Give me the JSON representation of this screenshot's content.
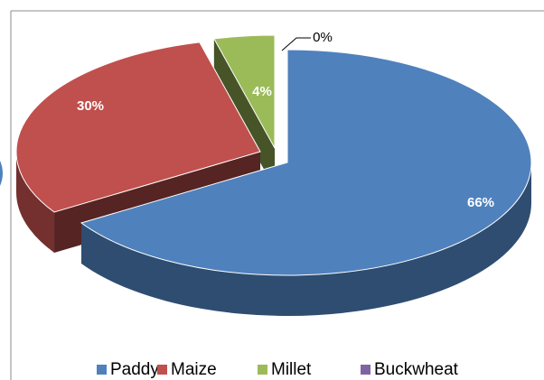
{
  "chart_data": {
    "type": "pie",
    "categories": [
      "Paddy",
      "Maize",
      "Millet",
      "Buckwheat"
    ],
    "values": [
      66,
      30,
      4,
      0
    ],
    "value_labels": [
      "66%",
      "30%",
      "4%",
      "0%"
    ],
    "colors": [
      "#4f81bd",
      "#c0504d",
      "#9bbb59",
      "#8064a2"
    ],
    "legend": "bottom"
  }
}
